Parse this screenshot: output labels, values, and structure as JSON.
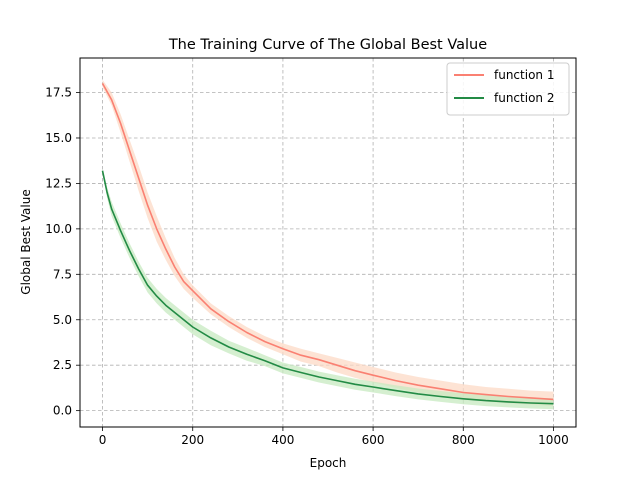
{
  "chart_data": {
    "type": "line",
    "title": "The Training Curve of The Global Best Value",
    "xlabel": "Epoch",
    "ylabel": "Global Best Value",
    "xlim": [
      -50,
      1050
    ],
    "ylim": [
      -0.9,
      19.4
    ],
    "xticks": [
      0,
      200,
      400,
      600,
      800,
      1000
    ],
    "xtick_labels": [
      "0",
      "200",
      "400",
      "600",
      "800",
      "1000"
    ],
    "yticks": [
      0.0,
      2.5,
      5.0,
      7.5,
      10.0,
      12.5,
      15.0,
      17.5
    ],
    "ytick_labels": [
      "0.0",
      "2.5",
      "5.0",
      "7.5",
      "10.0",
      "12.5",
      "15.0",
      "17.5"
    ],
    "grid": true,
    "legend_position": "top-right",
    "series": [
      {
        "name": "function 1",
        "color": "#fa8072",
        "band_color": "#fcd9c6",
        "x": [
          0,
          20,
          40,
          60,
          80,
          100,
          120,
          140,
          160,
          180,
          200,
          240,
          280,
          320,
          360,
          400,
          440,
          480,
          520,
          560,
          600,
          650,
          700,
          750,
          800,
          850,
          900,
          950,
          1000
        ],
        "y": [
          18.0,
          17.1,
          15.8,
          14.3,
          12.8,
          11.3,
          10.0,
          8.9,
          7.9,
          7.1,
          6.6,
          5.6,
          4.9,
          4.3,
          3.8,
          3.4,
          3.05,
          2.8,
          2.5,
          2.2,
          1.95,
          1.65,
          1.4,
          1.2,
          1.0,
          0.88,
          0.78,
          0.7,
          0.62
        ],
        "band_upper": [
          18.2,
          17.5,
          16.3,
          14.9,
          13.5,
          12.0,
          10.7,
          9.5,
          8.4,
          7.5,
          6.9,
          5.9,
          5.2,
          4.6,
          4.1,
          3.7,
          3.4,
          3.15,
          2.9,
          2.65,
          2.4,
          2.1,
          1.85,
          1.65,
          1.45,
          1.3,
          1.2,
          1.1,
          1.05
        ],
        "band_lower": [
          17.8,
          16.8,
          15.3,
          13.7,
          12.1,
          10.6,
          9.3,
          8.3,
          7.4,
          6.7,
          6.2,
          5.3,
          4.6,
          4.0,
          3.5,
          3.1,
          2.7,
          2.45,
          2.1,
          1.8,
          1.55,
          1.25,
          1.0,
          0.8,
          0.62,
          0.5,
          0.4,
          0.32,
          0.25
        ]
      },
      {
        "name": "function 2",
        "color": "#238b45",
        "band_color": "#c7e9c0",
        "x": [
          0,
          10,
          20,
          40,
          60,
          80,
          100,
          120,
          140,
          160,
          180,
          200,
          240,
          280,
          320,
          360,
          400,
          440,
          480,
          520,
          560,
          600,
          650,
          700,
          750,
          800,
          850,
          900,
          950,
          1000
        ],
        "y": [
          13.2,
          12.0,
          11.1,
          9.9,
          8.8,
          7.8,
          6.9,
          6.3,
          5.8,
          5.4,
          5.0,
          4.6,
          4.0,
          3.5,
          3.1,
          2.75,
          2.35,
          2.1,
          1.85,
          1.65,
          1.45,
          1.3,
          1.1,
          0.92,
          0.78,
          0.65,
          0.55,
          0.48,
          0.42,
          0.38
        ],
        "band_upper": [
          13.3,
          12.3,
          11.5,
          10.3,
          9.2,
          8.2,
          7.3,
          6.7,
          6.2,
          5.8,
          5.4,
          5.0,
          4.4,
          3.85,
          3.45,
          3.05,
          2.65,
          2.4,
          2.15,
          1.95,
          1.75,
          1.6,
          1.4,
          1.22,
          1.08,
          0.95,
          0.85,
          0.78,
          0.72,
          0.68
        ],
        "band_lower": [
          13.1,
          11.7,
          10.7,
          9.5,
          8.4,
          7.4,
          6.5,
          5.9,
          5.4,
          5.0,
          4.6,
          4.2,
          3.6,
          3.15,
          2.75,
          2.45,
          2.05,
          1.8,
          1.55,
          1.35,
          1.15,
          1.0,
          0.8,
          0.62,
          0.48,
          0.35,
          0.25,
          0.18,
          0.12,
          0.08
        ]
      }
    ]
  }
}
